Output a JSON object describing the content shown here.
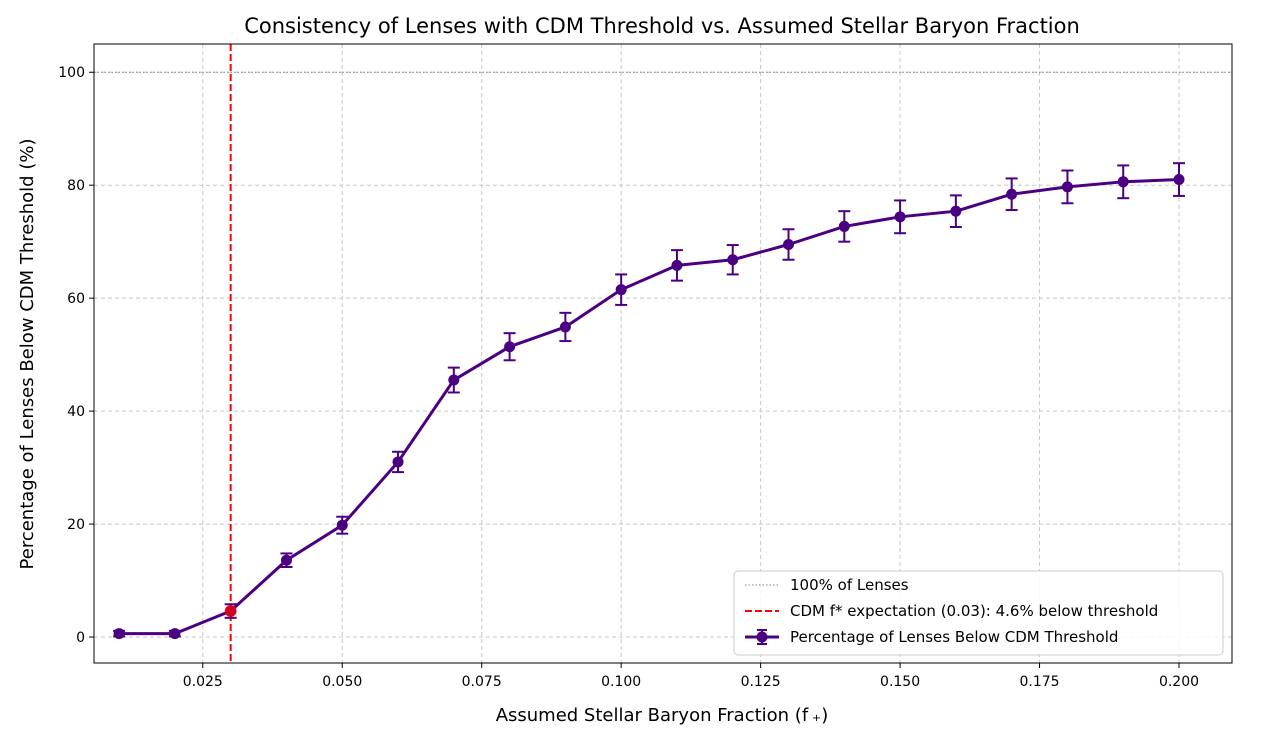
{
  "chart_data": {
    "type": "line",
    "title": "Consistency of Lenses with CDM Threshold vs. Assumed Stellar Baryon Fraction",
    "xlabel": "Assumed Stellar Baryon Fraction (f ₊)",
    "ylabel": "Percentage of Lenses Below CDM Threshold (%)",
    "xlim": [
      0.0055,
      0.2095
    ],
    "ylim": [
      -4.6,
      105
    ],
    "x_ticks": [
      "0.025",
      "0.050",
      "0.075",
      "0.100",
      "0.125",
      "0.150",
      "0.175",
      "0.200"
    ],
    "x_tick_values": [
      0.025,
      0.05,
      0.075,
      0.1,
      0.125,
      0.15,
      0.175,
      0.2
    ],
    "y_ticks": [
      "0",
      "20",
      "40",
      "60",
      "80",
      "100"
    ],
    "y_tick_values": [
      0,
      20,
      40,
      60,
      80,
      100
    ],
    "grid": true,
    "legend_position": "lower-right",
    "series": [
      {
        "name": "Percentage of Lenses Below CDM Threshold",
        "color": "#4b0082",
        "x": [
          0.01,
          0.02,
          0.03,
          0.04,
          0.05,
          0.06,
          0.07,
          0.08,
          0.09,
          0.1,
          0.11,
          0.12,
          0.13,
          0.14,
          0.15,
          0.16,
          0.17,
          0.18,
          0.19,
          0.2
        ],
        "y": [
          0.6,
          0.6,
          4.6,
          13.6,
          19.8,
          31.0,
          45.5,
          51.4,
          54.9,
          61.5,
          65.8,
          66.8,
          69.5,
          72.7,
          74.4,
          75.4,
          78.4,
          79.7,
          80.6,
          81.0
        ],
        "err": [
          0.5,
          0.5,
          1.2,
          1.2,
          1.5,
          1.8,
          2.2,
          2.4,
          2.5,
          2.7,
          2.7,
          2.6,
          2.7,
          2.7,
          2.9,
          2.8,
          2.8,
          2.9,
          2.9,
          2.9
        ]
      }
    ],
    "reference_lines": [
      {
        "name": "100% of Lenses",
        "orientation": "horizontal",
        "value": 100,
        "style": "dotted",
        "color": "#808080"
      },
      {
        "name": "CDM f* expectation (0.03): 4.6% below threshold",
        "orientation": "vertical",
        "value": 0.03,
        "style": "dashed",
        "color": "#ff0000"
      }
    ],
    "highlight_point": {
      "x": 0.03,
      "y": 4.6,
      "color": "#ff0000"
    }
  }
}
